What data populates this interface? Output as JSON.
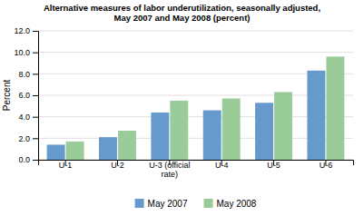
{
  "chart_data": {
    "type": "bar",
    "title": "Alternative measures of labor underutilization, seasonally adjusted,\nMay 2007 and May 2008 (percent)",
    "ylabel": "Percent",
    "categories": [
      "U-1",
      "U-2",
      "U-3 (official\nrate)",
      "U-4",
      "U-5",
      "U-6"
    ],
    "series": [
      {
        "name": "May 2007",
        "color": "#6699CC",
        "values": [
          1.4,
          2.1,
          4.4,
          4.6,
          5.3,
          8.3
        ]
      },
      {
        "name": "May 2008",
        "color": "#99CC99",
        "values": [
          1.7,
          2.7,
          5.5,
          5.7,
          6.3,
          9.6
        ]
      }
    ],
    "ylim": [
      0,
      12.0
    ],
    "yticks": [
      {
        "value": 0.0,
        "label": "0.0"
      },
      {
        "value": 2.0,
        "label": "2.0"
      },
      {
        "value": 4.0,
        "label": "4.0"
      },
      {
        "value": 6.0,
        "label": "6.0"
      },
      {
        "value": 8.0,
        "label": "8.0"
      },
      {
        "value": 10.0,
        "label": "10.0"
      },
      {
        "value": 12.0,
        "label": "12.0"
      }
    ],
    "grid": true,
    "legend": "bottom"
  }
}
